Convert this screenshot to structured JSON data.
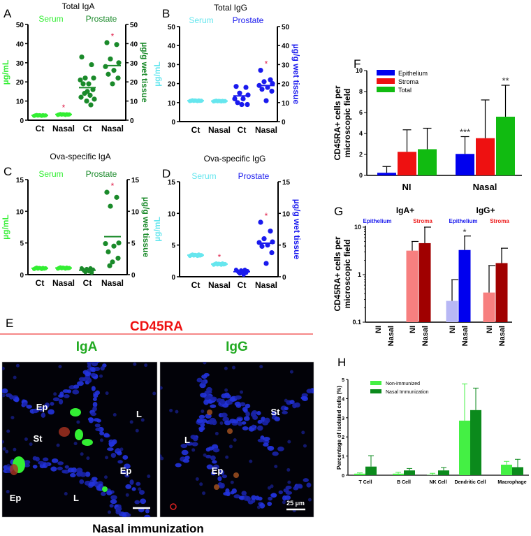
{
  "chart_data": [
    {
      "panel": "A",
      "type": "scatter",
      "title": "Total IgA",
      "group_headers": [
        "Serum",
        "Prostate"
      ],
      "ylabel_left": "µg/mL",
      "ylabel_right": "µg/g wet tissue",
      "ylim": [
        0,
        50
      ],
      "yticks": [
        "0",
        "10",
        "20",
        "30",
        "40",
        "50"
      ],
      "categories": [
        "Ct",
        "Nasal",
        "Ct",
        "Nasal"
      ],
      "colors": {
        "serum": "#33ee33",
        "prostate": "#1a8a2a"
      },
      "sig_mark": "*",
      "series": [
        {
          "name": "Serum Ct",
          "values": [
            2.3,
            2.5,
            2.7,
            2.4,
            2.6,
            2.5,
            2.3,
            2.6,
            2.4,
            2.5
          ],
          "mean": 2.5,
          "significant": false
        },
        {
          "name": "Serum Nasal",
          "values": [
            2.8,
            3.0,
            3.2,
            2.9,
            3.1,
            3.0,
            2.8,
            3.1,
            2.9,
            3.0
          ],
          "mean": 3.0,
          "significant": true
        },
        {
          "name": "Prostate Ct",
          "values": [
            33,
            29,
            22,
            22,
            21,
            19,
            19,
            16,
            15,
            14,
            13,
            12,
            11,
            10,
            8
          ],
          "mean": 17,
          "significant": false
        },
        {
          "name": "Prostate Nasal",
          "values": [
            40.5,
            39.5,
            32,
            30,
            28,
            26,
            24,
            22,
            19
          ],
          "mean": 28.5,
          "significant": true
        }
      ]
    },
    {
      "panel": "B",
      "type": "scatter",
      "title": "Total IgG",
      "group_headers": [
        "Serum",
        "Prostate"
      ],
      "ylabel_left": "µg/mL",
      "ylabel_right": "µg/g wet tissue",
      "ylim": [
        0,
        50
      ],
      "yticks": [
        "0",
        "10",
        "20",
        "30",
        "40",
        "50"
      ],
      "categories": [
        "Ct",
        "Nasal",
        "Ct",
        "Nasal"
      ],
      "colors": {
        "serum": "#66e6ee",
        "prostate": "#1a1aee"
      },
      "sig_mark": "*",
      "series": [
        {
          "name": "Serum Ct",
          "values": [
            10.8,
            11,
            11.2,
            10.9,
            11.1,
            11,
            10.8,
            11.1,
            10.9,
            11
          ],
          "mean": 11,
          "significant": false
        },
        {
          "name": "Serum Nasal",
          "values": [
            10.6,
            10.8,
            11,
            10.7,
            10.9,
            10.8,
            10.6,
            10.9,
            10.7,
            10.8
          ],
          "mean": 10.8,
          "significant": false
        },
        {
          "name": "Prostate Ct",
          "values": [
            18.5,
            18,
            15,
            14,
            12,
            12,
            10,
            9,
            9
          ],
          "mean": 13.5,
          "significant": false
        },
        {
          "name": "Prostate Nasal",
          "values": [
            27,
            22,
            21,
            20,
            19,
            18,
            17,
            16,
            11
          ],
          "mean": 19,
          "significant": true
        }
      ]
    },
    {
      "panel": "C",
      "type": "scatter",
      "title": "Ova-specific IgA",
      "group_headers": [
        "Serum",
        "Prostate"
      ],
      "ylabel_left": "µg/mL",
      "ylabel_right": "µg/g wet tissue",
      "ylim": [
        0,
        15
      ],
      "yticks": [
        "0",
        "5",
        "10",
        "15"
      ],
      "categories": [
        "Ct",
        "Nasal",
        "Ct",
        "Nasal"
      ],
      "colors": {
        "serum": "#33ee33",
        "prostate": "#1a8a2a"
      },
      "sig_mark": "*",
      "series": [
        {
          "name": "Serum Ct",
          "values": [
            0.9,
            1.0,
            1.1,
            0.95,
            1.05,
            1.0,
            0.9,
            1.05,
            0.95,
            1.0
          ],
          "mean": 1.0,
          "significant": false
        },
        {
          "name": "Serum Nasal",
          "values": [
            0.95,
            1.05,
            1.15,
            1.0,
            1.1,
            1.05,
            0.95,
            1.1,
            1.0,
            1.05
          ],
          "mean": 1.05,
          "significant": false
        },
        {
          "name": "Prostate Ct",
          "values": [
            1.0,
            0.8,
            0.6,
            0.4,
            0.9,
            0.7,
            0.5,
            1.0,
            0.3,
            0.8
          ],
          "mean": 0.7,
          "significant": false
        },
        {
          "name": "Prostate Nasal",
          "values": [
            13,
            12.2,
            10.8,
            5,
            4.9,
            4.5,
            3.6,
            2.6,
            2,
            1.4
          ],
          "mean": 6,
          "significant": true
        }
      ]
    },
    {
      "panel": "D",
      "type": "scatter",
      "title": "Ova-specific IgG",
      "group_headers": [
        "Serum",
        "Prostate"
      ],
      "ylabel_left": "µg/mL",
      "ylabel_right": "µg/g wet tissue",
      "ylim": [
        0,
        15
      ],
      "yticks": [
        "0",
        "5",
        "10",
        "15"
      ],
      "categories": [
        "Ct",
        "Nasal",
        "Ct",
        "Nasal"
      ],
      "colors": {
        "serum": "#66e6ee",
        "prostate": "#1a1aee"
      },
      "sig_mark": "*",
      "series": [
        {
          "name": "Serum Ct",
          "values": [
            3.3,
            3.4,
            3.5,
            3.35,
            3.45,
            3.4,
            3.3,
            3.5,
            3.35,
            3.4
          ],
          "mean": 3.4,
          "significant": false
        },
        {
          "name": "Serum Nasal",
          "values": [
            1.9,
            2.0,
            2.1,
            1.95,
            2.05,
            2.0,
            1.9,
            2.1,
            1.95,
            2.0
          ],
          "mean": 2.0,
          "significant": true
        },
        {
          "name": "Prostate Ct",
          "values": [
            1.1,
            0.9,
            0.7,
            0.5,
            1.0,
            0.8,
            0.3,
            1.1,
            0.6,
            0.9
          ],
          "mean": 0.8,
          "significant": false
        },
        {
          "name": "Prostate Nasal",
          "values": [
            8.6,
            7.2,
            6,
            5.5,
            5.4,
            5,
            4.8,
            3.8,
            2.1
          ],
          "mean": 5.3,
          "significant": true
        }
      ]
    },
    {
      "panel": "F",
      "type": "bar",
      "ylabel": [
        "CD45RA+ cells per",
        "microscopic field"
      ],
      "ylim": [
        0,
        10
      ],
      "yticks": [
        "0",
        "2",
        "4",
        "6",
        "8",
        "10"
      ],
      "categories": [
        "NI",
        "Nasal"
      ],
      "legend_position": "top-left",
      "series": [
        {
          "name": "Epithelium",
          "color": "#0000ee",
          "values": [
            0.25,
            2.05
          ],
          "err": [
            0.6,
            1.65
          ],
          "marks": [
            "",
            "***"
          ]
        },
        {
          "name": "Stroma",
          "color": "#ee1111",
          "values": [
            2.25,
            3.55
          ],
          "err": [
            2.1,
            3.65
          ],
          "marks": [
            "",
            ""
          ]
        },
        {
          "name": "Total",
          "color": "#11bb11",
          "values": [
            2.5,
            5.6
          ],
          "err": [
            2.0,
            3.0
          ],
          "marks": [
            "",
            "**"
          ]
        }
      ]
    },
    {
      "panel": "G",
      "type": "bar",
      "yscale": "log",
      "ylabel": [
        "CD45RA+ cells per",
        "microscopic field"
      ],
      "ylim": [
        0.1,
        10
      ],
      "yticks": [
        "0.1",
        "1",
        "10"
      ],
      "groups": [
        {
          "label": "IgA+",
          "subgroups": [
            {
              "label": "Epithelium",
              "color": "#1a1aee"
            },
            {
              "label": "Stroma",
              "color": "#ee2222"
            }
          ]
        },
        {
          "label": "IgG+",
          "subgroups": [
            {
              "label": "Epithelium",
              "color": "#1a1aee"
            },
            {
              "label": "Stroma",
              "color": "#ee2222"
            }
          ]
        }
      ],
      "categories": [
        "NI",
        "Nasal",
        "NI",
        "Nasal",
        "NI",
        "Nasal",
        "NI",
        "Nasal"
      ],
      "values": [
        null,
        null,
        3.2,
        4.6,
        0.28,
        3.3,
        0.42,
        1.75
      ],
      "err_upper": [
        null,
        null,
        5.0,
        10.0,
        0.78,
        6.5,
        1.55,
        3.6
      ],
      "colors": [
        "#b8b8f5",
        "#0000ee",
        "#f77f7f",
        "#a00000",
        "#b8b8f5",
        "#0000ee",
        "#f77f7f",
        "#a00000"
      ],
      "marks": [
        "",
        "",
        "",
        "",
        "",
        "*",
        "",
        ""
      ]
    },
    {
      "panel": "H",
      "type": "bar",
      "ylabel": "Percentage of isolated cells (%)",
      "ylim": [
        0,
        5
      ],
      "yticks": [
        "0",
        "1",
        "2",
        "3",
        "4",
        "5"
      ],
      "categories": [
        "T Cell",
        "B Cell",
        "NK Cell",
        "Dendritic Cell",
        "Macrophage"
      ],
      "legend_position": "top-left",
      "series": [
        {
          "name": "Non-immunized",
          "color": "#44f044",
          "values": [
            0.08,
            0.08,
            0.02,
            2.85,
            0.55
          ],
          "err": [
            0.04,
            0.07,
            0.08,
            1.92,
            0.17
          ]
        },
        {
          "name": "Nasal  Immunization",
          "color": "#0b8a1c",
          "values": [
            0.45,
            0.25,
            0.25,
            3.4,
            0.42
          ],
          "err": [
            0.57,
            0.1,
            0.15,
            1.15,
            0.41
          ]
        }
      ]
    }
  ],
  "panel_letters": [
    "A",
    "B",
    "C",
    "D",
    "E",
    "F",
    "G",
    "H"
  ],
  "panel_e": {
    "title": "CD45RA",
    "title_color": "#ee1111",
    "columns": [
      "IgA",
      "IgG"
    ],
    "column_color": "#22aa22",
    "left_labels": [
      "Ep",
      "St",
      "L",
      "Ep",
      "Ep",
      "L"
    ],
    "right_labels": [
      "St",
      "L",
      "Ep"
    ],
    "scale_bar": "25 µm",
    "caption": "Nasal immunization"
  }
}
